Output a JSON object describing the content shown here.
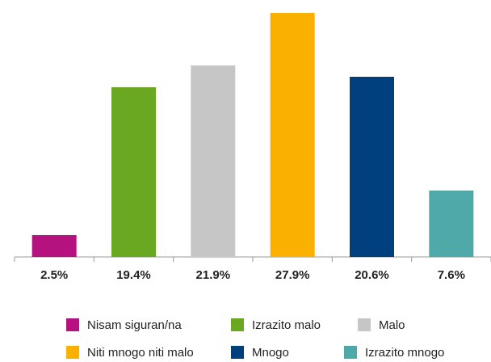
{
  "chart_data": {
    "type": "bar",
    "categories": [
      "Nisam siguran/na",
      "Izrazito malo",
      "Malo",
      "Niti mnogo niti malo",
      "Mnogo",
      "Izrazito mnogo"
    ],
    "values": [
      2.5,
      19.4,
      21.9,
      27.9,
      20.6,
      7.6
    ],
    "value_labels": [
      "2.5%",
      "19.4%",
      "21.9%",
      "27.9%",
      "20.6%",
      "7.6%"
    ],
    "colors": [
      "#b5127f",
      "#6aa821",
      "#c6c6c6",
      "#f9b000",
      "#003f7d",
      "#4fa9a8"
    ],
    "legend": "bottom"
  }
}
